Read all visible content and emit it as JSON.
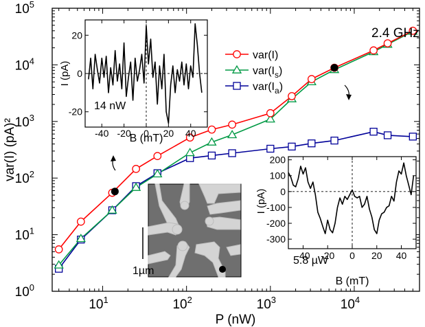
{
  "chart_data": [
    {
      "type": "line",
      "id": "main",
      "xscale": "log",
      "yscale": "log",
      "xlim": [
        2.5,
        60000
      ],
      "ylim": [
        1,
        100000
      ],
      "xlabel": "P (nW)",
      "ylabel": "var(I) (pA)²",
      "x_ticks": [
        {
          "value": 10,
          "base": "10",
          "exp": "1"
        },
        {
          "value": 100,
          "base": "10",
          "exp": "2"
        },
        {
          "value": 1000,
          "base": "10",
          "exp": "3"
        },
        {
          "value": 10000,
          "base": "10",
          "exp": "4"
        }
      ],
      "y_ticks": [
        {
          "value": 1,
          "base": "10",
          "exp": "0"
        },
        {
          "value": 10,
          "base": "10",
          "exp": "1"
        },
        {
          "value": 100,
          "base": "10",
          "exp": "2"
        },
        {
          "value": 1000,
          "base": "10",
          "exp": "3"
        },
        {
          "value": 10000,
          "base": "10",
          "exp": "4"
        },
        {
          "value": 100000,
          "base": "10",
          "exp": "5"
        }
      ],
      "annotation": "2.4 GHz",
      "series": [
        {
          "name": "var(I)",
          "color": "#ff0000",
          "marker": "circle",
          "x": [
            3,
            5.5,
            13,
            25,
            45,
            110,
            200,
            350,
            1000,
            1800,
            3100,
            5800,
            17000,
            25000,
            50000
          ],
          "y": [
            5.5,
            17,
            55,
            145,
            245,
            520,
            720,
            880,
            1400,
            2800,
            5600,
            8900,
            18000,
            24000,
            40000
          ]
        },
        {
          "name": "var(Is)",
          "color": "#009944",
          "marker": "triangle",
          "x": [
            3,
            5.5,
            13,
            25,
            45,
            110,
            200,
            350,
            1000,
            1800,
            3100,
            5800,
            17000,
            25000,
            50000
          ],
          "y": [
            2.9,
            8.5,
            27,
            68,
            118,
            280,
            430,
            580,
            1100,
            2500,
            5000,
            8200,
            17000,
            23000,
            39000
          ]
        },
        {
          "name": "var(Ia)",
          "color": "#000099",
          "marker": "square",
          "x": [
            3,
            5.5,
            13,
            25,
            45,
            110,
            200,
            350,
            1000,
            1800,
            3100,
            5800,
            17000,
            25000,
            50000
          ],
          "y": [
            2.5,
            8.2,
            27,
            72,
            122,
            225,
            250,
            275,
            330,
            360,
            410,
            460,
            660,
            570,
            540
          ]
        }
      ],
      "highlight_points": [
        {
          "x": 14,
          "y": 58
        },
        {
          "x": 5800,
          "y": 8900
        }
      ]
    },
    {
      "type": "line",
      "id": "inset_top",
      "xlim": [
        -55,
        55
      ],
      "ylim": [
        -28,
        28
      ],
      "xlabel": "B (mT)",
      "ylabel": "I (pA)",
      "x_ticks": [
        -40,
        -20,
        0,
        20,
        40
      ],
      "y_ticks": [
        -20,
        0,
        20
      ],
      "annotation": "14 nW",
      "series": [
        {
          "x": [
            -52,
            -50,
            -48,
            -46,
            -44,
            -42,
            -40,
            -38,
            -36,
            -34,
            -32,
            -30,
            -28,
            -26,
            -24,
            -22,
            -20,
            -18,
            -16,
            -14,
            -12,
            -10,
            -8,
            -6,
            -4,
            -2,
            0,
            2,
            4,
            6,
            8,
            10,
            12,
            14,
            16,
            18,
            20,
            22,
            24,
            26,
            28,
            30,
            32,
            34,
            36,
            38,
            40,
            42,
            44,
            46,
            48,
            50
          ],
          "y": [
            -3,
            8,
            -8,
            10,
            2,
            -5,
            8,
            -2,
            9,
            -10,
            3,
            -6,
            12,
            -4,
            5,
            -8,
            16,
            -12,
            -2,
            6,
            -14,
            8,
            -4,
            2,
            10,
            -5,
            25,
            5,
            18,
            -2,
            6,
            -16,
            4,
            -8,
            10,
            -20,
            -26,
            -6,
            4,
            -10,
            2,
            -4,
            6,
            -6,
            5,
            -8,
            4,
            -2,
            26,
            15,
            0,
            -10
          ]
        }
      ]
    },
    {
      "type": "line",
      "id": "inset_bottom",
      "xlim": [
        -52,
        52
      ],
      "ylim": [
        -360,
        220
      ],
      "xlabel": "B (mT)",
      "ylabel": "I (pA)",
      "x_ticks": [
        -40,
        -20,
        0,
        20,
        40
      ],
      "y_ticks": [
        -300,
        -200,
        -100,
        0,
        100,
        200
      ],
      "annotation": "5.8 µW",
      "series": [
        {
          "x": [
            -52,
            -50,
            -48,
            -46,
            -44,
            -42,
            -40,
            -38,
            -36,
            -34,
            -32,
            -30,
            -28,
            -26,
            -24,
            -22,
            -20,
            -18,
            -16,
            -14,
            -12,
            -10,
            -8,
            -6,
            -4,
            -2,
            0,
            2,
            4,
            6,
            8,
            10,
            12,
            14,
            16,
            18,
            20,
            22,
            24,
            26,
            28,
            30,
            32,
            34,
            36,
            38,
            40,
            42,
            44,
            46,
            48,
            50
          ],
          "y": [
            120,
            90,
            40,
            30,
            80,
            160,
            110,
            150,
            60,
            20,
            60,
            -20,
            -130,
            -170,
            -220,
            -265,
            -180,
            -240,
            -260,
            -200,
            -100,
            -40,
            -80,
            -30,
            -50,
            -20,
            10,
            -30,
            -40,
            -30,
            -100,
            -80,
            -30,
            -110,
            -160,
            -240,
            -265,
            -180,
            -140,
            -130,
            -100,
            -90,
            -30,
            -60,
            60,
            130,
            110,
            180,
            100,
            40,
            -20,
            100
          ]
        }
      ]
    }
  ],
  "image_inset": {
    "scale_label": "1µm"
  }
}
